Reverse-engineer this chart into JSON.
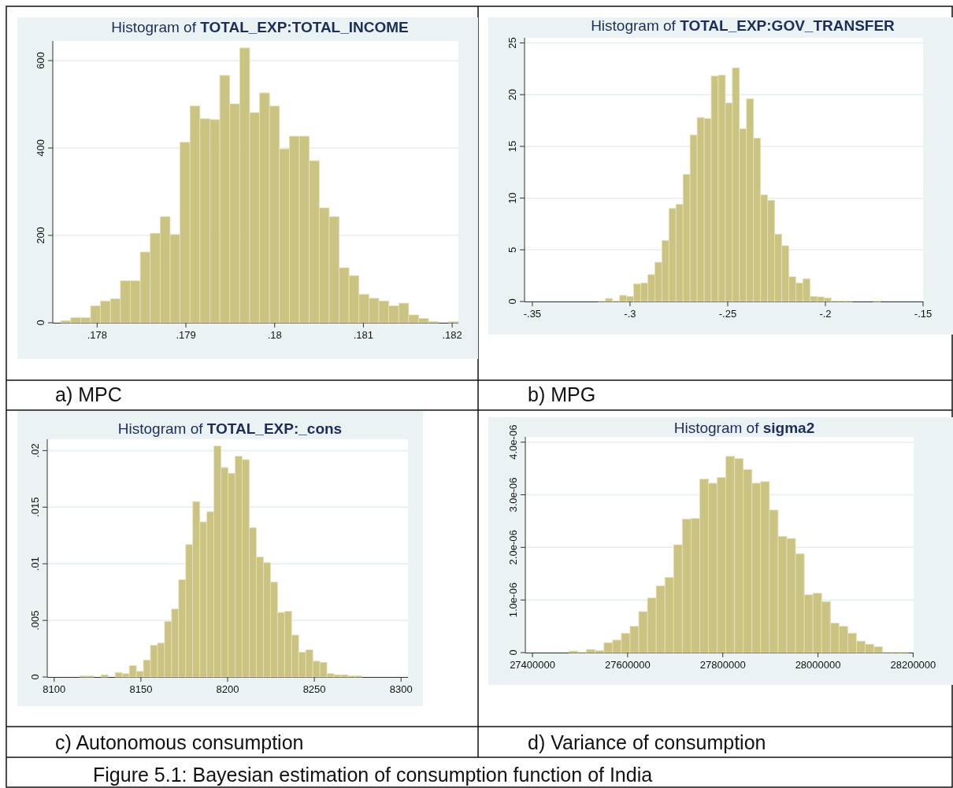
{
  "chart_data": [
    {
      "type": "histogram",
      "title": "Histogram of TOTAL_EXP:TOTAL_INCOME",
      "color": "#cbc381",
      "grid": "y",
      "annotations": [
        "a)  MPC"
      ],
      "bins": [
        0.17759,
        0.177702,
        0.177814,
        0.177926,
        0.178038,
        0.17815,
        0.178262,
        0.178374,
        0.178486,
        0.178598,
        0.17871,
        0.178822,
        0.178934,
        0.179046,
        0.179158,
        0.17927,
        0.179382,
        0.179494,
        0.179606,
        0.179718,
        0.17983,
        0.179942,
        0.180054,
        0.180166,
        0.180278,
        0.18039,
        0.180502,
        0.180614,
        0.180726,
        0.180838,
        0.18095,
        0.181062,
        0.181174,
        0.181286,
        0.181398,
        0.18151,
        0.181622,
        0.181734,
        0.181846,
        0.181958,
        0.18207
      ],
      "values": [
        5,
        12,
        12,
        39,
        50,
        55,
        96,
        96,
        162,
        205,
        243,
        202,
        413,
        496,
        467,
        465,
        566,
        501,
        629,
        481,
        526,
        496,
        398,
        427,
        427,
        371,
        263,
        243,
        126,
        108,
        65,
        56,
        50,
        39,
        45,
        18,
        10,
        3,
        0,
        3
      ],
      "xlim": [
        0.1775,
        0.18207
      ],
      "xticks": [
        {
          "value": 0.178,
          "label": ".178"
        },
        {
          "value": 0.179,
          "label": ".179"
        },
        {
          "value": 0.18,
          "label": ".18"
        },
        {
          "value": 0.181,
          "label": ".181"
        },
        {
          "value": 0.182,
          "label": ".182"
        }
      ],
      "ylim": [
        0,
        645
      ],
      "yticks": [
        0,
        200,
        400,
        600
      ]
    },
    {
      "type": "histogram",
      "title": "Histogram of TOTAL_EXP:GOV_TRANSFER",
      "color": "#cbc381",
      "grid": "y",
      "annotations": [
        "b)  MPG"
      ],
      "bins": [
        -0.3162,
        -0.31259,
        -0.30898,
        -0.30537,
        -0.30176,
        -0.29815,
        -0.29454,
        -0.29093,
        -0.28732,
        -0.28371,
        -0.2801,
        -0.27649,
        -0.27288,
        -0.26927,
        -0.26566,
        -0.26205,
        -0.25844,
        -0.25483,
        -0.25122,
        -0.24761,
        -0.244,
        -0.24039,
        -0.23678,
        -0.23317,
        -0.22956,
        -0.22595,
        -0.22234,
        -0.21873,
        -0.21512,
        -0.21151,
        -0.2079,
        -0.20429,
        -0.20068,
        -0.19707,
        -0.19346,
        -0.18985,
        -0.18624,
        -0.18263,
        -0.17902,
        -0.17541,
        -0.1718
      ],
      "values": [
        0.05,
        0.3,
        0.05,
        0.6,
        0.5,
        1.7,
        1.8,
        2.6,
        3.8,
        5.9,
        9,
        9.4,
        12.3,
        16.1,
        17.8,
        17.7,
        21.8,
        21.9,
        19.2,
        22.6,
        16.7,
        19.6,
        15.8,
        10.3,
        9.8,
        6.5,
        5.4,
        2.4,
        1.8,
        2.2,
        0.5,
        0.45,
        0.35,
        0.05,
        0.05,
        0.05,
        0,
        0,
        0,
        0.05
      ],
      "xlim": [
        -0.354,
        -0.15
      ],
      "xticks": [
        {
          "value": -0.35,
          "label": "-.35"
        },
        {
          "value": -0.3,
          "label": "-.3"
        },
        {
          "value": -0.25,
          "label": "-.25"
        },
        {
          "value": -0.2,
          "label": "-.2"
        },
        {
          "value": -0.15,
          "label": "-.15"
        }
      ],
      "ylim": [
        0,
        25.5
      ],
      "yticks": [
        0,
        5,
        10,
        15,
        20,
        25
      ]
    },
    {
      "type": "histogram",
      "title": "Histogram of TOTAL_EXP:_cons",
      "color": "#cbc381",
      "grid": "y",
      "annotations": [
        "c)  Autonomous consumption"
      ],
      "bins": [
        8114.8,
        8118.87,
        8122.94,
        8127.01,
        8131.08,
        8135.15,
        8139.22,
        8143.29,
        8147.36,
        8151.43,
        8155.5,
        8159.57,
        8163.64,
        8167.71,
        8171.78,
        8175.85,
        8179.92,
        8183.99,
        8188.06,
        8192.13,
        8196.2,
        8200.27,
        8204.34,
        8208.41,
        8212.48,
        8216.55,
        8220.62,
        8224.69,
        8228.76,
        8232.83,
        8236.9,
        8240.97,
        8245.04,
        8249.11,
        8253.18,
        8257.25,
        8261.32,
        8265.39,
        8269.46,
        8273.53,
        8277.6
      ],
      "values": [
        0.0001,
        0.0001,
        0,
        0.0002,
        0,
        0.0004,
        0.0003,
        0.001,
        0.0005,
        0.0015,
        0.0028,
        0.003,
        0.0049,
        0.006,
        0.0086,
        0.0117,
        0.0155,
        0.0137,
        0.0146,
        0.0204,
        0.0185,
        0.018,
        0.0195,
        0.0192,
        0.0132,
        0.0106,
        0.0101,
        0.0084,
        0.0057,
        0.0058,
        0.0037,
        0.0022,
        0.0024,
        0.0014,
        0.0013,
        0.0003,
        0.0002,
        0.0002,
        0.0001,
        0.0001
      ],
      "xlim": [
        8096,
        8304
      ],
      "xticks": [
        8100,
        8150,
        8200,
        8250,
        8300
      ],
      "ylim": [
        0,
        0.021
      ],
      "yticks": [
        0,
        {
          "value": 0.005,
          "label": ".005"
        },
        {
          "value": 0.01,
          "label": ".01"
        },
        {
          "value": 0.015,
          "label": ".015"
        },
        {
          "value": 0.02,
          "label": ".02"
        }
      ]
    },
    {
      "type": "histogram",
      "title": "Histogram of sigma2",
      "color": "#cbc381",
      "grid": "y",
      "annotations": [
        "d)  Variance of consumption",
        "Figure 5.1:  Bayesian estimation of consumption function of India"
      ],
      "bins": [
        27477000,
        27495300,
        27513600,
        27531900,
        27550200,
        27568500,
        27586800,
        27605100,
        27623400,
        27641700,
        27660000,
        27678300,
        27696600,
        27714900,
        27733200,
        27751500,
        27769800,
        27788100,
        27806400,
        27824700,
        27843000,
        27861300,
        27879600,
        27897900,
        27916200,
        27934500,
        27952800,
        27971100,
        27989400,
        28007700,
        28026000,
        28044300,
        28062600,
        28080900,
        28099200,
        28117500,
        28135800,
        28154100,
        28172400,
        28190700
      ],
      "values": [
        3e-08,
        1e-08,
        6e-08,
        4e-08,
        1.9e-07,
        2.4e-07,
        3.7e-07,
        5e-07,
        7.8e-07,
        1.04e-06,
        1.27e-06,
        1.43e-06,
        2.05e-06,
        2.54e-06,
        2.55e-06,
        3.3e-06,
        3.22e-06,
        3.33e-06,
        3.73e-06,
        3.69e-06,
        3.48e-06,
        3.22e-06,
        3.25e-06,
        2.71e-06,
        2.21e-06,
        2.17e-06,
        1.88e-06,
        1.1e-06,
        1.13e-06,
        9.7e-07,
        5.6e-07,
        5e-07,
        3.7e-07,
        2.2e-07,
        1.6e-07,
        1.1e-07,
        1e-08,
        1e-08,
        1e-08
      ],
      "xlim": [
        27385000,
        28201000
      ],
      "xticks": [
        27400000,
        27600000,
        27800000,
        28000000,
        28200000
      ],
      "ylim": [
        0,
        4.1e-06
      ],
      "yticks": [
        0,
        {
          "value": 1e-06,
          "label": "1.0e-06"
        },
        {
          "value": 2e-06,
          "label": "2.0e-06"
        },
        {
          "value": 3e-06,
          "label": "3.0e-06"
        },
        {
          "value": 4e-06,
          "label": "4.0e-06"
        }
      ]
    }
  ]
}
